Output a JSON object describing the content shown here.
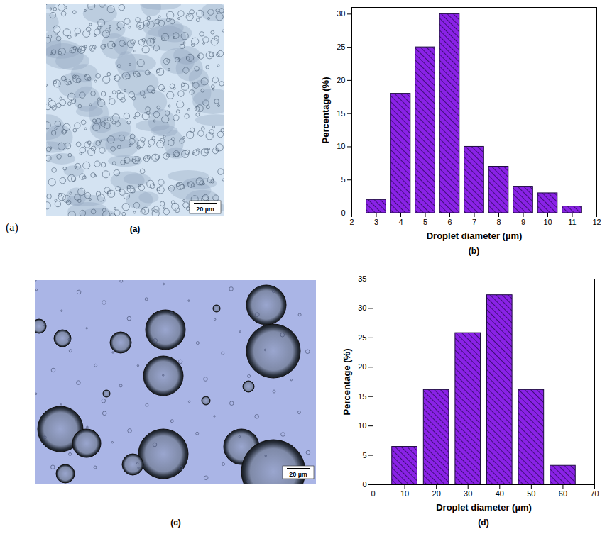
{
  "outer_label": "(a)",
  "images": [
    {
      "label": "(a)",
      "scale_bar": "20 µm"
    },
    {
      "label": "(c)",
      "scale_bar": "20 µm"
    }
  ],
  "chart_data": [
    {
      "type": "bar",
      "panel_label": "(b)",
      "x_label": "Droplet diameter (µm)",
      "y_label": "Percentage (%)",
      "x": [
        3,
        4,
        5,
        6,
        7,
        8,
        9,
        10,
        11
      ],
      "values": [
        2,
        18,
        25,
        30,
        10,
        7,
        4,
        3,
        1
      ],
      "color": "#8a22e6",
      "xlim": [
        2,
        12
      ],
      "xticks": [
        2,
        3,
        4,
        5,
        6,
        7,
        8,
        9,
        10,
        11,
        12
      ],
      "ylim": [
        0,
        31
      ],
      "yticks": [
        0,
        5,
        10,
        15,
        20,
        25,
        30
      ],
      "grid": false
    },
    {
      "type": "bar",
      "panel_label": "(d)",
      "x_label": "Droplet diameter (µm)",
      "y_label": "Percentage (%)",
      "x": [
        10,
        20,
        30,
        40,
        50,
        60
      ],
      "values": [
        6.45,
        16.13,
        25.81,
        32.26,
        16.13,
        3.23
      ],
      "color": "#8a22e6",
      "xlim": [
        0,
        70
      ],
      "xticks": [
        0,
        10,
        20,
        30,
        40,
        50,
        60,
        70
      ],
      "ylim": [
        0,
        35
      ],
      "yticks": [
        0,
        5,
        10,
        15,
        20,
        25,
        30,
        35
      ],
      "grid": false
    }
  ]
}
